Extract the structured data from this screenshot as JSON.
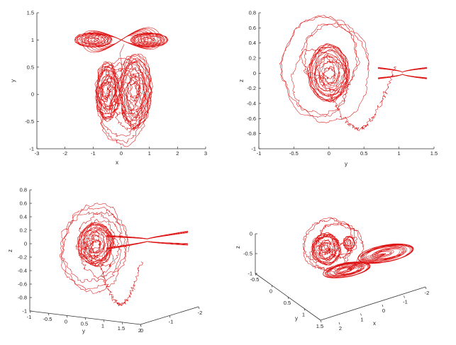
{
  "style": {
    "line_color": "#dd1111",
    "axis_color": "#333333",
    "background": "#ffffff"
  },
  "chart_data": [
    {
      "type": "line",
      "panel": "top-left",
      "view": "2D projection",
      "xlabel": "x",
      "ylabel": "y",
      "xlim": [
        -3,
        3
      ],
      "ylim": [
        -1,
        1.5
      ],
      "xticks": [
        -3,
        -2,
        -1,
        0,
        1,
        2,
        3
      ],
      "yticks": [
        -1,
        -0.5,
        0,
        0.5,
        1,
        1.5
      ],
      "series": [
        {
          "shape": "lemniscate",
          "centers": [
            [
              -1,
              1
            ],
            [
              1,
              1
            ]
          ],
          "outer_half_width": 1.35,
          "outer_half_height": 0.27
        },
        {
          "shape": "noisy double scroll",
          "centers": [
            [
              -0.5,
              0.05
            ],
            [
              0.5,
              0.05
            ]
          ],
          "span_x": [
            -0.75,
            0.95
          ],
          "span_y": [
            -0.85,
            0.55
          ]
        }
      ]
    },
    {
      "type": "line",
      "panel": "top-right",
      "view": "2D projection",
      "xlabel": "y",
      "ylabel": "z",
      "xlim": [
        -1,
        1.5
      ],
      "ylim": [
        -1,
        0.8
      ],
      "xticks": [
        -1,
        -0.5,
        0,
        0.5,
        1,
        1.5
      ],
      "yticks": [
        -1,
        -0.8,
        -0.6,
        -0.4,
        -0.2,
        0,
        0.2,
        0.4,
        0.6,
        0.8
      ],
      "series": [
        {
          "shape": "noisy spiral",
          "center": [
            0,
            0
          ],
          "span_x": [
            -0.5,
            0.42
          ],
          "span_y": [
            -0.9,
            0.75
          ]
        },
        {
          "shape": "hourglass band",
          "x_range": [
            0.7,
            1.4
          ],
          "half_height_range": [
            0.012,
            0.08
          ]
        }
      ]
    },
    {
      "type": "line",
      "panel": "bottom-left",
      "view": "3D",
      "xlabel": "",
      "ylabel": "y",
      "zlabel": "z",
      "ylim": [
        -1,
        2
      ],
      "xlim": [
        -2,
        2
      ],
      "zlim": [
        -1,
        0.8
      ],
      "yticks": [
        -1,
        -0.5,
        0,
        0.5,
        1,
        1.5,
        2
      ],
      "xticks": [
        0,
        -1,
        -2
      ],
      "zticks": [
        -1,
        -0.8,
        -0.6,
        -0.4,
        -0.2,
        0,
        0.2,
        0.4,
        0.6,
        0.8
      ]
    },
    {
      "type": "line",
      "panel": "bottom-right",
      "view": "3D",
      "xlabel": "x",
      "ylabel": "y",
      "zlabel": "z",
      "ylim": [
        -0.5,
        1.5
      ],
      "xlim": [
        -2,
        2
      ],
      "zlim": [
        -1,
        0
      ],
      "yticks": [
        -0.5,
        0,
        0.5,
        1,
        1.5
      ],
      "xticks": [
        2,
        1,
        0,
        -1,
        -2
      ],
      "zticks": [
        -1,
        -0.5,
        0
      ]
    }
  ]
}
